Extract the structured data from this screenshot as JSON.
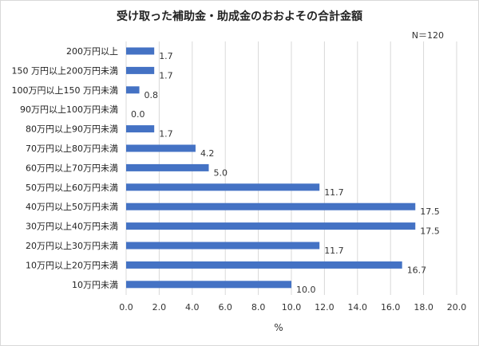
{
  "chart_data": {
    "type": "bar",
    "orientation": "horizontal",
    "title": "受け取った補助金・助成金のおおよその合計金額",
    "annotation": "N＝120",
    "xlabel": "%",
    "ylabel": "",
    "xlim": [
      0,
      20
    ],
    "xticks": [
      "0.0",
      "2.0",
      "4.0",
      "6.0",
      "8.0",
      "10.0",
      "12.0",
      "14.0",
      "16.0",
      "18.0",
      "20.0"
    ],
    "grid": "vertical",
    "bar_color": "#4472C4",
    "categories": [
      "200万円以上",
      "150 万円以上200万円未満",
      "100万円以上150 万円未満",
      "90万円以上100万円未満",
      "80万円以上90万円未満",
      "70万円以上80万円未満",
      "60万円以上70万円未満",
      "50万円以上60万円未満",
      "40万円以上50万円未満",
      "30万円以上40万円未満",
      "20万円以上30万円未満",
      "10万円以上20万円未満",
      "10万円未満"
    ],
    "values": [
      1.7,
      1.7,
      0.8,
      0.0,
      1.7,
      4.2,
      5.0,
      11.7,
      17.5,
      17.5,
      11.7,
      16.7,
      10.0
    ],
    "value_labels": [
      "1.7",
      "1.7",
      "0.8",
      "0.0",
      "1.7",
      "4.2",
      "5.0",
      "11.7",
      "17.5",
      "17.5",
      "11.7",
      "16.7",
      "10.0"
    ]
  }
}
